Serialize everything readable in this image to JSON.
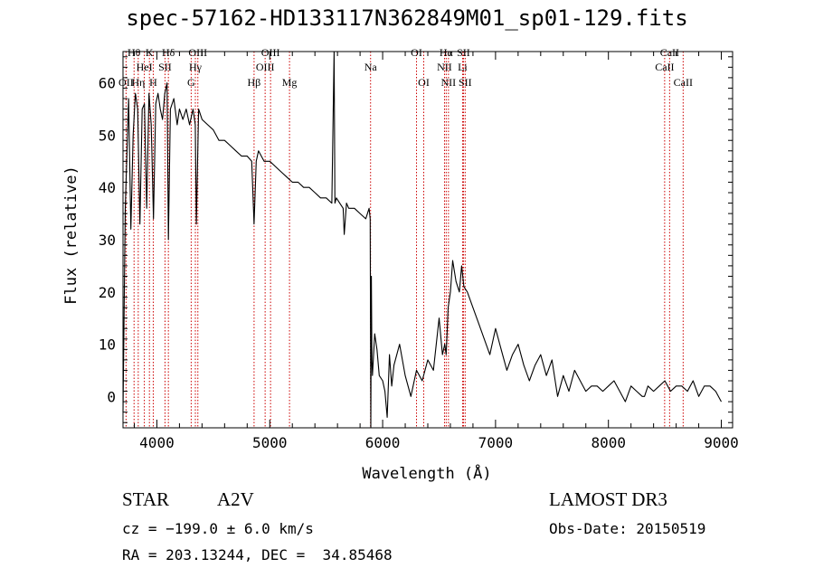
{
  "header": {
    "title": "spec-57162-HD133117N362849M01_sp01-129.fits"
  },
  "footer": {
    "object_class": "STAR",
    "subclass": "A2V",
    "survey": "LAMOST DR3",
    "redshift": "cz = −199.0 ± 6.0 km/s",
    "obs_date": "Obs-Date: 20150519",
    "coords": "RA = 203.13244, DEC =  34.85468"
  },
  "colors": {
    "line": "#cc0000",
    "spectrum": "#000000"
  },
  "chart_data": {
    "type": "line",
    "title": "spec-57162-HD133117N362849M01_sp01-129.fits",
    "xlabel": "Wavelength (Å)",
    "ylabel": "Flux (relative)",
    "xlim": [
      3700,
      9100
    ],
    "ylim": [
      -6,
      66
    ],
    "xticks": [
      4000,
      5000,
      6000,
      7000,
      8000,
      9000
    ],
    "yticks": [
      0,
      10,
      20,
      30,
      40,
      50,
      60
    ],
    "grid": false,
    "legend": "none",
    "series": [
      {
        "x": [
          3700,
          3720,
          3750,
          3770,
          3790,
          3810,
          3830,
          3850,
          3870,
          3890,
          3910,
          3930,
          3950,
          3970,
          3990,
          4010,
          4030,
          4050,
          4070,
          4090,
          4102,
          4120,
          4150,
          4180,
          4200,
          4230,
          4260,
          4290,
          4320,
          4340,
          4350,
          4370,
          4400,
          4450,
          4500,
          4550,
          4600,
          4650,
          4700,
          4750,
          4800,
          4840,
          4861,
          4880,
          4900,
          4950,
          5000,
          5050,
          5100,
          5150,
          5200,
          5250,
          5300,
          5350,
          5400,
          5450,
          5500,
          5550,
          5570,
          5577,
          5590,
          5620,
          5650,
          5660,
          5680,
          5700,
          5750,
          5800,
          5850,
          5880,
          5890,
          5895,
          5900,
          5905,
          5910,
          5930,
          5950,
          5970,
          6000,
          6020,
          6040,
          6060,
          6080,
          6100,
          6150,
          6200,
          6250,
          6300,
          6350,
          6400,
          6450,
          6500,
          6530,
          6550,
          6563,
          6580,
          6600,
          6620,
          6650,
          6680,
          6700,
          6720,
          6750,
          6800,
          6850,
          6900,
          6950,
          7000,
          7050,
          7100,
          7150,
          7200,
          7250,
          7300,
          7350,
          7400,
          7450,
          7500,
          7550,
          7600,
          7650,
          7700,
          7750,
          7800,
          7850,
          7900,
          7950,
          8000,
          8050,
          8100,
          8150,
          8200,
          8250,
          8300,
          8320,
          8350,
          8400,
          8450,
          8500,
          8550,
          8600,
          8650,
          8700,
          8750,
          8800,
          8850,
          8900,
          8950,
          9000
        ],
        "y": [
          -3,
          36,
          57,
          32,
          50,
          58,
          55,
          33,
          55,
          56,
          36,
          58,
          52,
          34,
          56,
          58,
          55,
          53,
          58,
          60,
          30,
          55,
          57,
          52,
          55,
          53,
          55,
          52,
          55,
          52,
          33,
          55,
          53,
          52,
          51,
          49,
          49,
          48,
          47,
          46,
          46,
          45,
          33,
          45,
          47,
          45,
          45,
          44,
          43,
          42,
          41,
          41,
          40,
          40,
          39,
          38,
          38,
          37,
          70,
          37,
          38,
          37,
          36,
          31,
          37,
          36,
          36,
          35,
          34,
          36,
          34,
          -6,
          23,
          7,
          4,
          12,
          9,
          4,
          3,
          1,
          -4,
          8,
          2,
          6,
          10,
          4,
          0,
          5,
          3,
          7,
          5,
          15,
          8,
          10,
          8,
          17,
          20,
          26,
          22,
          20,
          25,
          21,
          20,
          17,
          14,
          11,
          8,
          13,
          9,
          5,
          8,
          10,
          6,
          3,
          6,
          8,
          4,
          7,
          0,
          4,
          1,
          5,
          3,
          1,
          2,
          2,
          1,
          2,
          3,
          1,
          -1,
          2,
          1,
          0,
          0,
          2,
          1,
          2,
          3,
          1,
          2,
          2,
          1,
          3,
          0,
          2,
          2,
          1,
          -1
        ]
      }
    ],
    "lines": [
      {
        "label": "OII",
        "wave": 3727,
        "row": 3
      },
      {
        "label": "Hθ",
        "wave": 3798,
        "row": 1
      },
      {
        "label": "Hη",
        "wave": 3835,
        "row": 3
      },
      {
        "label": "HeI",
        "wave": 3889,
        "row": 2
      },
      {
        "label": "K",
        "wave": 3934,
        "row": 1
      },
      {
        "label": "H",
        "wave": 3968,
        "row": 3
      },
      {
        "label": "SII",
        "wave": 4072,
        "row": 2
      },
      {
        "label": "Hδ",
        "wave": 4102,
        "row": 1
      },
      {
        "label": "G",
        "wave": 4304,
        "row": 3
      },
      {
        "label": "Hγ",
        "wave": 4341,
        "row": 2
      },
      {
        "label": "OIII",
        "wave": 4363,
        "row": 1
      },
      {
        "label": "Hβ",
        "wave": 4861,
        "row": 3
      },
      {
        "label": "OIII",
        "wave": 4959,
        "row": 2
      },
      {
        "label": "OIII",
        "wave": 5007,
        "row": 1
      },
      {
        "label": "Mg",
        "wave": 5175,
        "row": 3
      },
      {
        "label": "Na",
        "wave": 5893,
        "row": 2
      },
      {
        "label": "OI",
        "wave": 6300,
        "row": 1
      },
      {
        "label": "OI",
        "wave": 6364,
        "row": 3
      },
      {
        "label": "NII",
        "wave": 6548,
        "row": 2
      },
      {
        "label": "Hα",
        "wave": 6563,
        "row": 1
      },
      {
        "label": "NII",
        "wave": 6583,
        "row": 3
      },
      {
        "label": "SII",
        "wave": 6716,
        "row": 1
      },
      {
        "label": "Li",
        "wave": 6708,
        "row": 2
      },
      {
        "label": "SII",
        "wave": 6731,
        "row": 3
      },
      {
        "label": "CaII",
        "wave": 8498,
        "row": 2
      },
      {
        "label": "CaII",
        "wave": 8542,
        "row": 1
      },
      {
        "label": "CaII",
        "wave": 8662,
        "row": 3
      }
    ]
  }
}
